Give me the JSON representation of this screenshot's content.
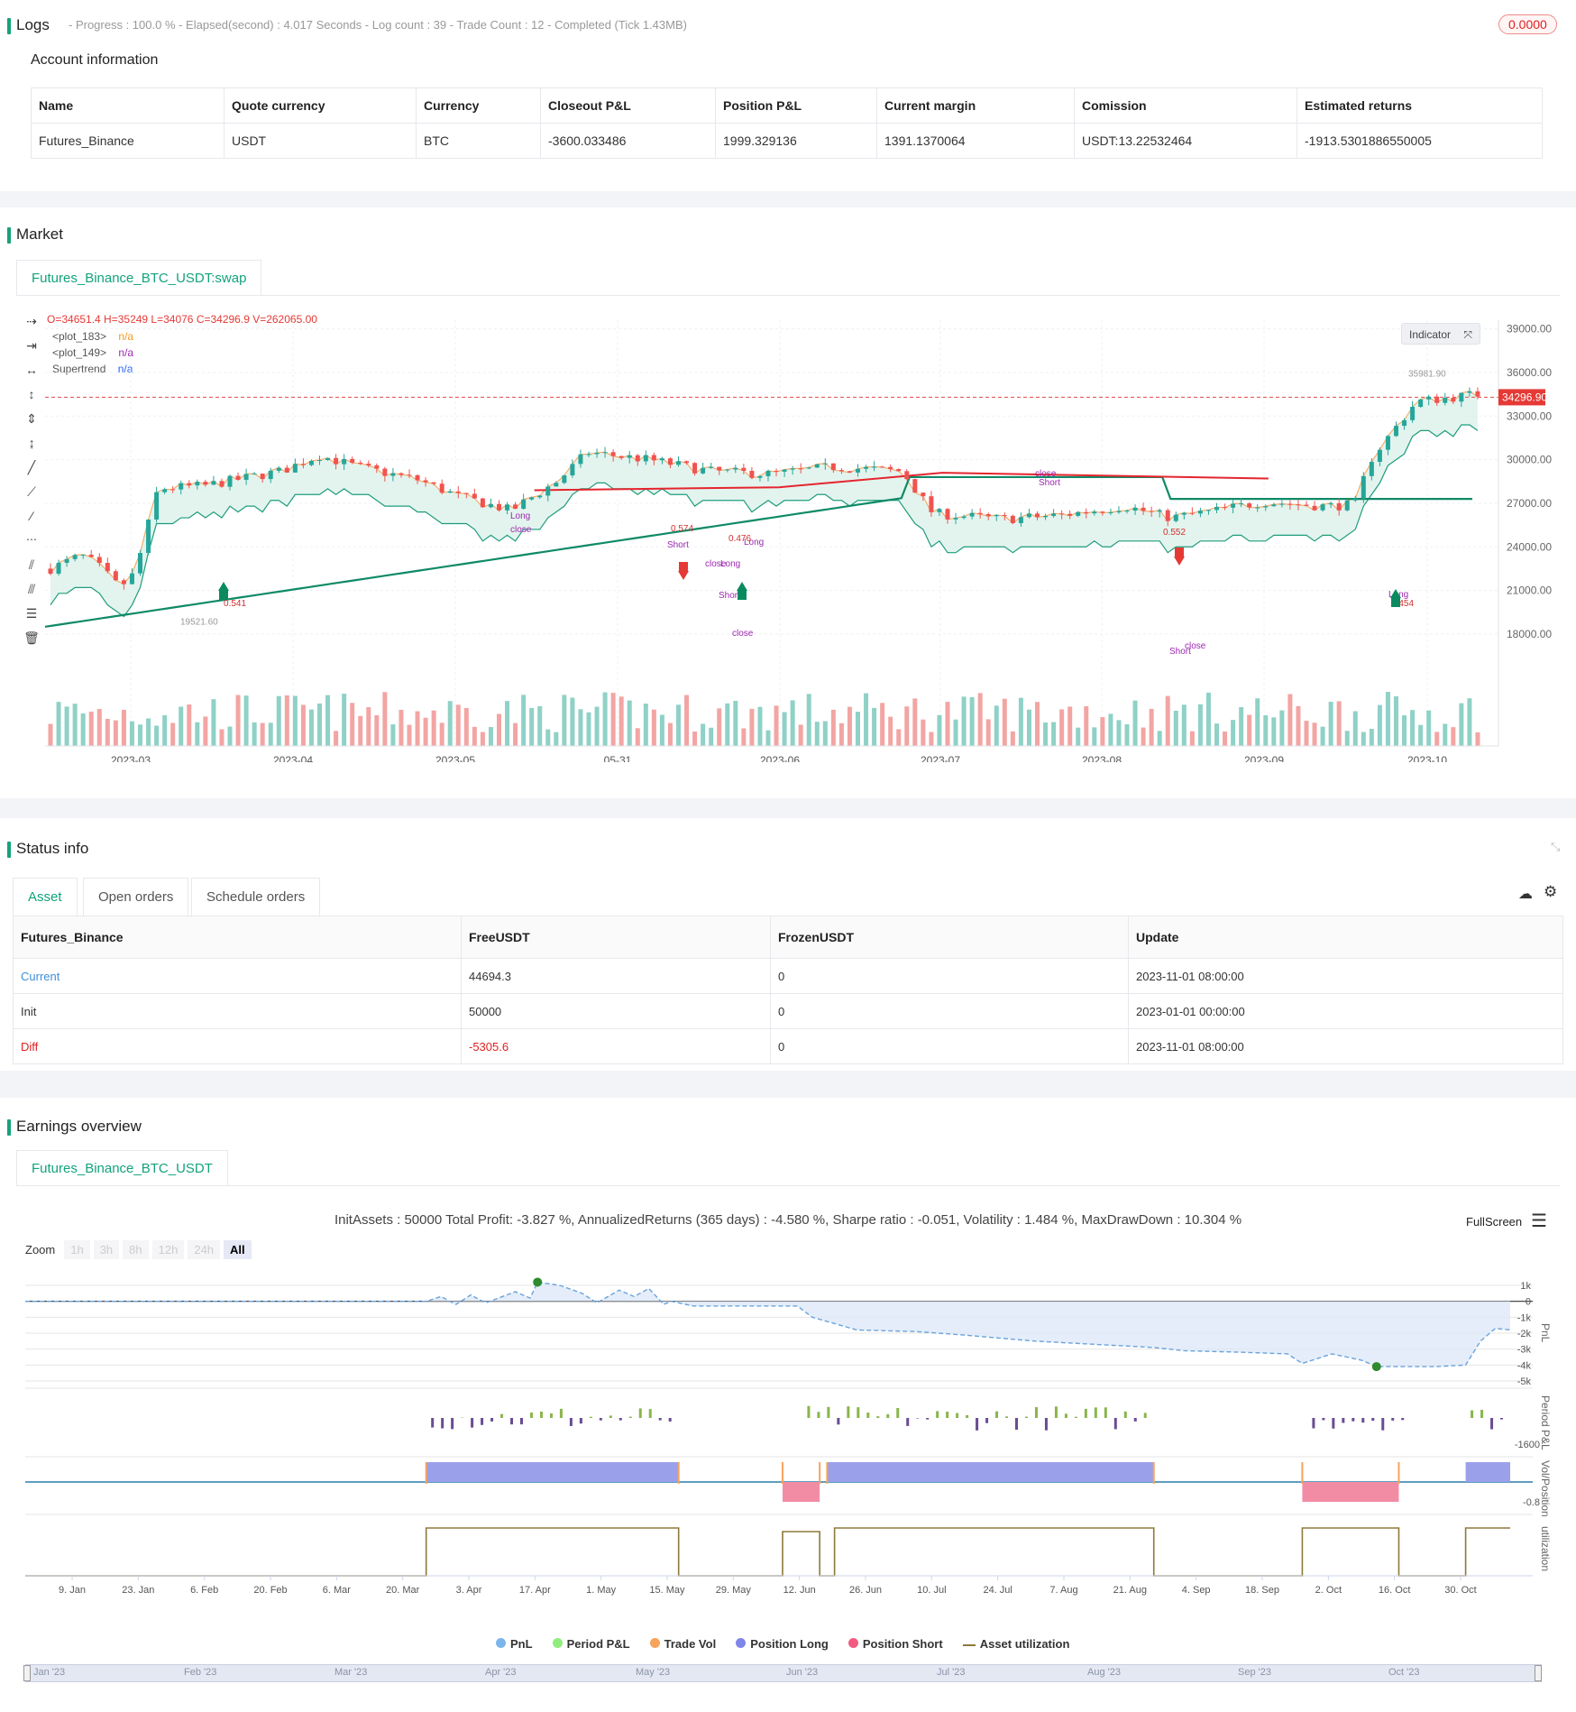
{
  "logs": {
    "title": "Logs",
    "status_line": "- Progress : 100.0 % - Elapsed(second) : 4.017  Seconds - Log count : 39 - Trade Count : 12 - Completed (Tick 1.43MB)",
    "badge": "0.0000"
  },
  "account": {
    "title": "Account information",
    "headers": [
      "Name",
      "Quote currency",
      "Currency",
      "Closeout P&L",
      "Position P&L",
      "Current margin",
      "Comission",
      "Estimated returns"
    ],
    "row": [
      "Futures_Binance",
      "USDT",
      "BTC",
      "-3600.033486",
      "1999.329136",
      "1391.1370064",
      "USDT:13.22532464",
      "-1913.5301886550005"
    ]
  },
  "market": {
    "title": "Market",
    "tab": "Futures_Binance_BTC_USDT:swap",
    "ohlc": "O=34651.4  H=35249  L=34076  C=34296.9  V=262065.00",
    "legend": [
      {
        "name": "<plot_183>",
        "value": "n/a",
        "color": "#f59a23"
      },
      {
        "name": "<plot_149>",
        "value": "n/a",
        "color": "#9c27b0"
      },
      {
        "name": "Supertrend",
        "value": "n/a",
        "color": "#2962ff"
      }
    ],
    "indicator_btn": "Indicator",
    "price_ticks": [
      "39000.00",
      "36000.00",
      "33000.00",
      "30000.00",
      "27000.00",
      "24000.00",
      "21000.00",
      "18000.00"
    ],
    "current_price": "34296.90",
    "high_label": "35981.90",
    "low_label": "19521.60",
    "date_ticks": [
      "2023-03",
      "2023-04",
      "2023-05",
      "05-31",
      "2023-06",
      "2023-07",
      "2023-08",
      "2023-09",
      "2023-10"
    ],
    "annotations": [
      "Long",
      "close",
      "Short",
      "close",
      "Long",
      "Short",
      "close",
      "Long",
      "close",
      "Short",
      "Short",
      "close",
      "Long",
      "0.541",
      "0.574",
      "0.476",
      "0.552",
      "0.454"
    ]
  },
  "status": {
    "title": "Status info",
    "tabs": [
      "Asset",
      "Open orders",
      "Schedule orders"
    ],
    "headers": [
      "Futures_Binance",
      "FreeUSDT",
      "FrozenUSDT",
      "Update"
    ],
    "rows": [
      [
        "Current",
        "44694.3",
        "0",
        "2023-11-01 08:00:00"
      ],
      [
        "Init",
        "50000",
        "0",
        "2023-01-01 00:00:00"
      ],
      [
        "Diff",
        "-5305.6",
        "0",
        "2023-11-01 08:00:00"
      ]
    ]
  },
  "earnings": {
    "title": "Earnings overview",
    "tab": "Futures_Binance_BTC_USDT",
    "summary": "InitAssets : 50000 Total Profit: -3.827 %, AnnualizedReturns (365 days) : -4.580 %, Sharpe ratio : -0.051, Volatility : 1.484 %, MaxDrawDown : 10.304 %",
    "fullscreen": "FullScreen",
    "zoom_label": "Zoom",
    "zoom_options": [
      "1h",
      "3h",
      "8h",
      "12h",
      "24h",
      "All"
    ],
    "pnl_ticks": [
      "1k",
      "0",
      "-1k",
      "-2k",
      "-3k",
      "-4k",
      "-5k"
    ],
    "axis_titles": [
      "PnL",
      "Period P&L",
      "Vol/Position",
      "utilization"
    ],
    "period_tick": "-1600",
    "vol_tick": "-0.8",
    "date_ticks": [
      "9. Jan",
      "23. Jan",
      "6. Feb",
      "20. Feb",
      "6. Mar",
      "20. Mar",
      "3. Apr",
      "17. Apr",
      "1. May",
      "15. May",
      "29. May",
      "12. Jun",
      "26. Jun",
      "10. Jul",
      "24. Jul",
      "7. Aug",
      "21. Aug",
      "4. Sep",
      "18. Sep",
      "2. Oct",
      "16. Oct",
      "30. Oct"
    ],
    "legend": [
      {
        "name": "PnL",
        "color": "#7cb5ec"
      },
      {
        "name": "Period P&L",
        "color": "#90ed7d"
      },
      {
        "name": "Trade Vol",
        "color": "#f7a35c"
      },
      {
        "name": "Position Long",
        "color": "#8085e9"
      },
      {
        "name": "Position Short",
        "color": "#f15c80"
      },
      {
        "name": "Asset utilization",
        "color": "#8d7a3a"
      }
    ],
    "navigator": [
      "Jan '23",
      "Feb '23",
      "Mar '23",
      "Apr '23",
      "May '23",
      "Jun '23",
      "Jul '23",
      "Aug '23",
      "Sep '23",
      "Oct '23"
    ]
  },
  "colors": {
    "accent": "#15a27a",
    "up": "#26a69a",
    "down": "#ef5350",
    "negative": "#e02020"
  }
}
